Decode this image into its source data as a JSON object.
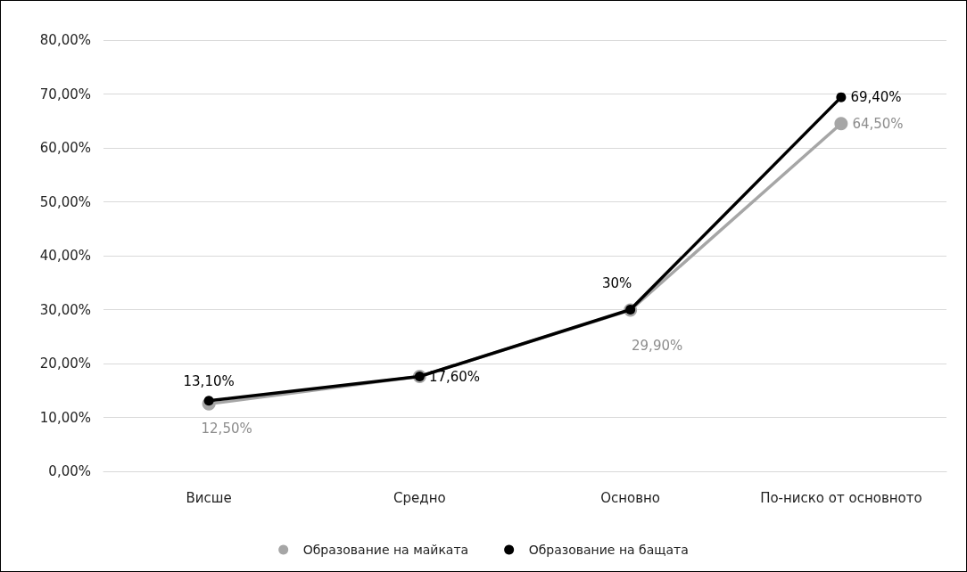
{
  "chart_data": {
    "type": "line",
    "categories": [
      "Висше",
      "Средно",
      "Основно",
      "По-ниско от основното"
    ],
    "series": [
      {
        "name": "Образование на майката",
        "color": "#a6a6a6",
        "values": [
          12.5,
          17.6,
          29.9,
          64.5
        ],
        "value_labels": [
          "12,50%",
          null,
          "29,90%",
          "64,50%"
        ]
      },
      {
        "name": "Образование на бащата",
        "color": "#000000",
        "values": [
          13.1,
          17.6,
          30,
          69.4
        ],
        "value_labels": [
          "13,10%",
          "17,60%",
          "30%",
          "69,40%"
        ]
      }
    ],
    "ylim": [
      0,
      80
    ],
    "yticks": [
      {
        "value": 0,
        "label": "0,00%"
      },
      {
        "value": 10,
        "label": "10,00%"
      },
      {
        "value": 20,
        "label": "20,00%"
      },
      {
        "value": 30,
        "label": "30,00%"
      },
      {
        "value": 40,
        "label": "40,00%"
      },
      {
        "value": 50,
        "label": "50,00%"
      },
      {
        "value": 60,
        "label": "60,00%"
      },
      {
        "value": 70,
        "label": "70,00%"
      },
      {
        "value": 80,
        "label": "80,00%"
      }
    ],
    "grid": "y",
    "legend": "bottom",
    "marker": "circle",
    "line_style": "solid"
  }
}
